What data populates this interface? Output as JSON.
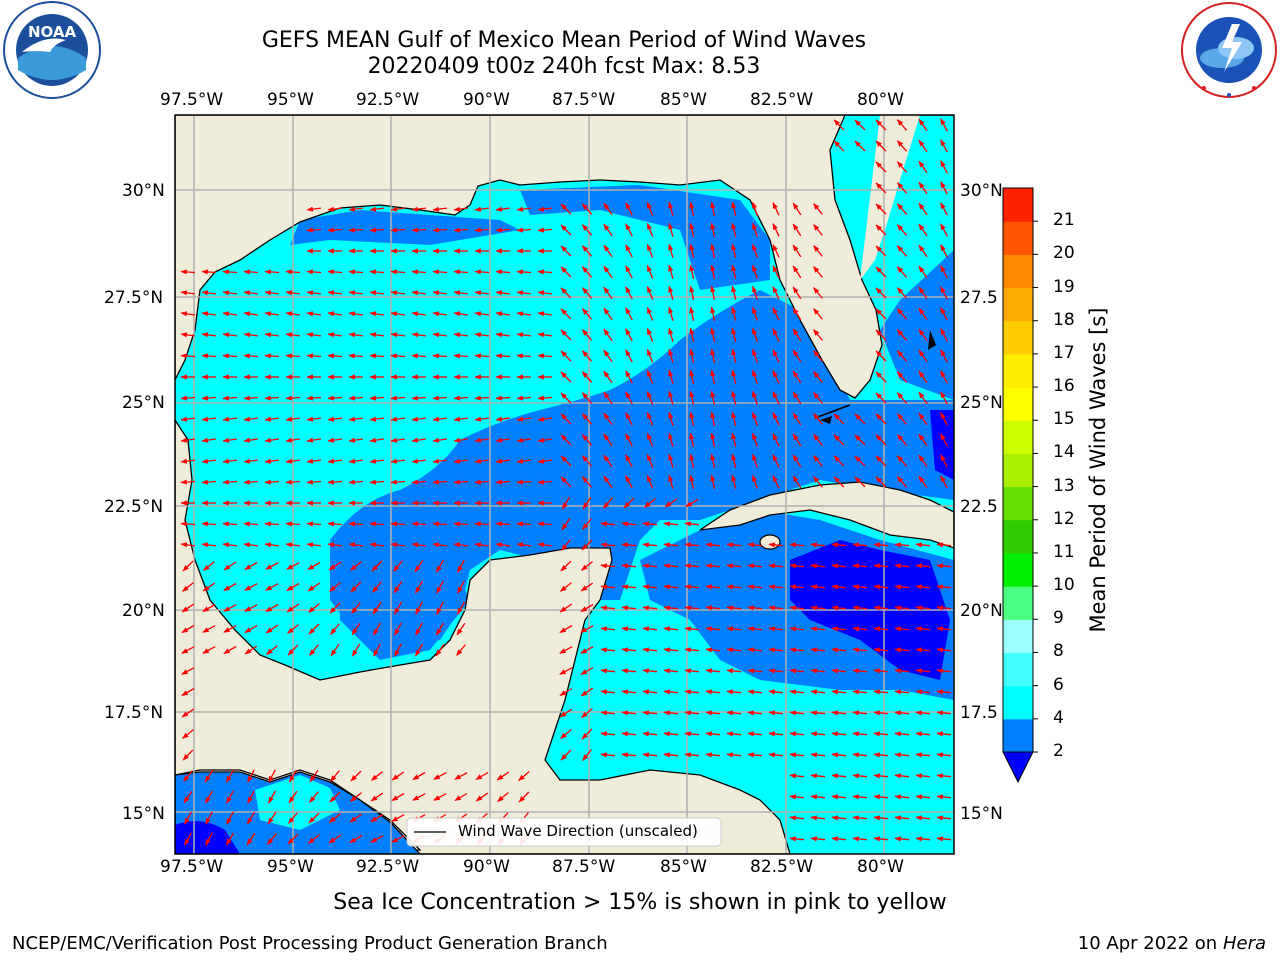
{
  "header": {
    "title_line1": "GEFS MEAN Gulf of Mexico Mean Period of Wind Waves",
    "title_line2": "20220409 t00z 240h fcst   Max: 8.53"
  },
  "logos": {
    "left": {
      "name": "noaa-logo",
      "text": "NOAA",
      "ring_text": "NATIONAL OCEANIC AND ATMOSPHERIC ADMINISTRATION · U.S. DEPARTMENT OF COMMERCE"
    },
    "right": {
      "name": "nws-logo",
      "ring_text": "NATIONAL WEATHER SERVICE"
    }
  },
  "map": {
    "lon_labels": [
      "97.5°W",
      "95°W",
      "92.5°W",
      "90°W",
      "87.5°W",
      "85°W",
      "82.5°W",
      "80°W"
    ],
    "lat_labels_left": [
      "30°N",
      "27.5°N",
      "25°N",
      "22.5°N",
      "20°N",
      "17.5°N",
      "15°N"
    ],
    "lat_labels_right": [
      "30°N",
      "27.5",
      "25°N",
      "22.5",
      "20°N",
      "17.5",
      "15°N"
    ],
    "lon_range": [
      -98,
      -78.2
    ],
    "lat_range": [
      14,
      31.8
    ],
    "colors": {
      "land": "#efedda",
      "ocean_4_6": "#00ffff",
      "ocean_2_4": "#0080ff",
      "ocean_lt2": "#0000ff",
      "arrow": "#ff0000",
      "grid": "#b0b0b0"
    },
    "legend_label": "Wind Wave Direction (unscaled)"
  },
  "colorbar": {
    "label": "Mean Period of Wind Waves [s]",
    "ticks": [
      "2",
      "4",
      "6",
      "8",
      "9",
      "10",
      "11",
      "12",
      "13",
      "14",
      "15",
      "16",
      "17",
      "18",
      "19",
      "20",
      "21"
    ],
    "colors": [
      "#0080ff",
      "#00ffff",
      "#40ffff",
      "#99ffff",
      "#4dff80",
      "#00ee00",
      "#33cc00",
      "#66dd00",
      "#aaee00",
      "#ccff00",
      "#ffff00",
      "#ffee00",
      "#ffcc00",
      "#ffaa00",
      "#ff8800",
      "#ff5500",
      "#ff2200",
      "#ff0000"
    ],
    "under_color": "#0000ff"
  },
  "footer": {
    "caption": "Sea Ice Concentration > 15% is shown in pink to yellow",
    "credit": "NCEP/EMC/Verification Post Processing Product Generation Branch",
    "date": "10 Apr 2022",
    "on": "on",
    "host": "Hera"
  }
}
